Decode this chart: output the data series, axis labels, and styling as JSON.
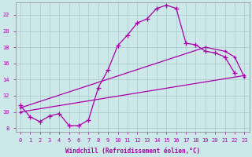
{
  "xlabel": "Windchill (Refroidissement éolien,°C)",
  "background_color": "#cce8e8",
  "grid_color": "#aac8cc",
  "line_color": "#aa00aa",
  "xlim": [
    -0.5,
    23.5
  ],
  "ylim": [
    7.5,
    23.5
  ],
  "yticks": [
    8,
    10,
    12,
    14,
    16,
    18,
    20,
    22
  ],
  "xticks": [
    0,
    1,
    2,
    3,
    4,
    5,
    6,
    7,
    8,
    9,
    10,
    11,
    12,
    13,
    14,
    15,
    16,
    17,
    18,
    19,
    20,
    21,
    22,
    23
  ],
  "line1": {
    "x": [
      0,
      1,
      2,
      3,
      4,
      5,
      6,
      7,
      8,
      9,
      10,
      11,
      12,
      13,
      14,
      15,
      16,
      17,
      18,
      19,
      20,
      21,
      22
    ],
    "y": [
      10.8,
      9.4,
      8.8,
      9.5,
      9.8,
      8.3,
      8.3,
      9.0,
      13.0,
      15.2,
      18.2,
      19.5,
      21.0,
      21.5,
      22.8,
      23.2,
      22.8,
      18.5,
      18.3,
      17.5,
      17.3,
      16.8,
      14.8
    ]
  },
  "line2": {
    "x": [
      0,
      23
    ],
    "y": [
      10.0,
      14.5
    ]
  },
  "line3": {
    "x": [
      0,
      19,
      21,
      22,
      23
    ],
    "y": [
      10.5,
      18.0,
      17.5,
      16.8,
      14.3
    ]
  }
}
